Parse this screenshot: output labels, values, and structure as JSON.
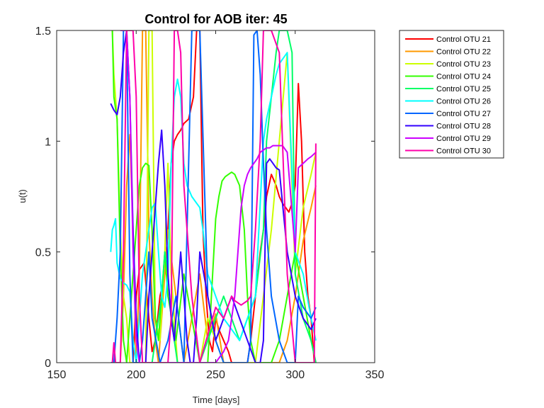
{
  "chart_data": {
    "type": "line",
    "title": "Control for AOB iter: 45",
    "xlabel": "Time [days]",
    "ylabel": "u(t)",
    "xlim": [
      150,
      350
    ],
    "ylim": [
      0,
      1.5
    ],
    "xticks": [
      150,
      200,
      250,
      300,
      350
    ],
    "yticks": [
      0,
      0.5,
      1,
      1.5
    ],
    "grid": false,
    "legend_position": "outside-top-right",
    "series": [
      {
        "name": "Control OTU 21",
        "color": "#ff0000",
        "x": [
          198,
          200,
          202,
          205,
          208,
          210,
          212,
          215,
          218,
          220,
          222,
          224,
          226,
          228,
          230,
          233,
          236,
          238,
          240,
          242,
          244,
          246,
          248,
          250,
          252,
          255,
          258,
          260,
          262,
          265,
          268,
          270,
          272,
          275,
          278,
          280,
          282,
          285,
          288,
          290,
          292,
          294,
          296,
          298,
          300,
          302,
          304,
          306,
          308,
          310,
          312
        ],
        "y": [
          0.0,
          0.3,
          0.42,
          0.45,
          0.2,
          0.05,
          0.1,
          0.3,
          0.4,
          0.6,
          0.9,
          1.0,
          1.03,
          1.05,
          1.08,
          1.1,
          1.2,
          1.5,
          1.5,
          0.6,
          0.3,
          0.1,
          0.05,
          0.2,
          0.15,
          0.1,
          0.05,
          0.0,
          0.0,
          0.0,
          0.0,
          0.0,
          0.1,
          0.3,
          0.5,
          0.6,
          0.75,
          0.85,
          0.8,
          0.75,
          0.72,
          0.7,
          0.68,
          0.72,
          0.8,
          1.26,
          1.0,
          0.5,
          0.3,
          0.2,
          0.0
        ]
      },
      {
        "name": "Control OTU 22",
        "color": "#ff9900",
        "x": [
          186,
          188,
          190,
          192,
          194,
          196,
          198,
          200,
          202,
          204,
          206,
          208,
          210,
          212,
          214,
          216,
          218,
          220,
          225,
          230,
          235,
          240,
          245,
          250,
          255,
          260,
          265,
          270,
          275,
          280,
          285,
          290,
          295,
          300,
          305,
          310,
          313
        ],
        "y": [
          0.0,
          0.0,
          0.0,
          0.3,
          0.8,
          1.03,
          0.6,
          0.0,
          0.4,
          1.5,
          1.5,
          0.6,
          0.3,
          0.1,
          0.0,
          0.2,
          0.4,
          0.6,
          0.3,
          0.0,
          0.2,
          0.4,
          0.1,
          0.22,
          0.0,
          0.0,
          0.0,
          0.0,
          0.0,
          0.0,
          0.0,
          0.0,
          0.1,
          0.3,
          0.55,
          0.7,
          0.8
        ]
      },
      {
        "name": "Control OTU 23",
        "color": "#ccff00",
        "x": [
          185,
          186,
          188,
          190,
          192,
          194,
          196,
          198,
          200,
          202,
          204,
          206,
          208,
          210,
          212,
          215,
          218,
          220,
          222,
          224,
          226,
          228,
          230,
          235,
          240,
          245,
          250,
          255,
          260,
          265,
          270,
          275,
          280,
          285,
          290,
          295,
          300,
          305,
          310,
          313
        ],
        "y": [
          1.5,
          1.3,
          1.1,
          0.6,
          0.3,
          0.2,
          0.0,
          0.0,
          0.0,
          0.0,
          0.0,
          0.0,
          1.5,
          1.5,
          0.2,
          0.1,
          0.5,
          0.9,
          0.4,
          0.2,
          0.0,
          0.0,
          0.0,
          0.0,
          0.0,
          0.2,
          0.1,
          0.0,
          0.0,
          0.0,
          0.0,
          0.0,
          0.3,
          0.6,
          1.0,
          1.4,
          0.4,
          0.7,
          0.85,
          0.95
        ]
      },
      {
        "name": "Control OTU 24",
        "color": "#33ff00",
        "x": [
          185,
          186,
          188,
          190,
          192,
          194,
          196,
          198,
          200,
          202,
          204,
          206,
          208,
          210,
          212,
          214,
          216,
          218,
          220,
          225,
          230,
          235,
          240,
          245,
          250,
          252,
          254,
          256,
          258,
          260,
          262,
          265,
          268,
          270,
          272,
          275,
          280,
          285,
          290,
          295,
          300,
          305,
          310,
          313
        ],
        "y": [
          1.5,
          1.2,
          1.1,
          0.5,
          0.1,
          0.0,
          0.2,
          0.4,
          0.6,
          0.8,
          0.88,
          0.9,
          0.89,
          0.6,
          0.2,
          0.1,
          0.3,
          0.5,
          0.3,
          0.1,
          0.4,
          0.2,
          0.0,
          0.0,
          0.65,
          0.75,
          0.82,
          0.84,
          0.85,
          0.86,
          0.85,
          0.8,
          0.6,
          0.3,
          0.1,
          0.0,
          0.0,
          0.0,
          0.1,
          0.3,
          0.5,
          0.3,
          0.1,
          0.0
        ]
      },
      {
        "name": "Control OTU 25",
        "color": "#00ff66",
        "x": [
          210,
          212,
          214,
          216,
          218,
          220,
          222,
          224,
          226,
          228,
          230,
          235,
          240,
          245,
          250,
          255,
          260,
          265,
          270,
          275,
          280,
          282,
          285,
          288,
          290,
          292,
          295,
          298,
          300,
          305,
          310,
          313
        ],
        "y": [
          0.0,
          0.1,
          0.2,
          0.3,
          0.5,
          0.4,
          0.2,
          0.1,
          0.0,
          0.0,
          0.0,
          0.0,
          0.0,
          0.1,
          0.2,
          0.3,
          0.2,
          0.1,
          0.2,
          0.3,
          0.6,
          1.0,
          1.2,
          1.4,
          1.5,
          1.5,
          1.5,
          1.4,
          0.4,
          0.2,
          0.1,
          0.0
        ]
      },
      {
        "name": "Control OTU 26",
        "color": "#00ffff",
        "x": [
          184,
          185,
          186,
          187,
          188,
          190,
          192,
          194,
          196,
          198,
          200,
          202,
          204,
          206,
          208,
          210,
          212,
          214,
          216,
          218,
          220,
          222,
          224,
          226,
          228,
          230,
          232,
          235,
          238,
          240,
          242,
          245,
          250,
          255,
          260,
          265,
          270,
          275,
          280,
          282,
          285,
          288,
          290,
          295,
          300,
          305,
          310,
          313
        ],
        "y": [
          0.5,
          0.6,
          0.62,
          0.65,
          0.45,
          0.38,
          0.36,
          0.35,
          0.32,
          0.1,
          0.0,
          0.2,
          0.4,
          0.5,
          0.6,
          0.7,
          0.72,
          0.5,
          0.3,
          0.25,
          0.4,
          0.9,
          1.2,
          1.28,
          1.2,
          0.9,
          0.8,
          0.75,
          0.72,
          0.7,
          0.6,
          0.4,
          0.3,
          0.2,
          0.15,
          0.1,
          0.2,
          0.3,
          1.0,
          1.1,
          1.2,
          1.3,
          1.35,
          1.4,
          0.5,
          0.4,
          0.2,
          0.1
        ]
      },
      {
        "name": "Control OTU 27",
        "color": "#0066ff",
        "x": [
          184,
          186,
          188,
          190,
          192,
          194,
          196,
          198,
          200,
          202,
          204,
          206,
          208,
          210,
          215,
          220,
          225,
          230,
          235,
          240,
          245,
          250,
          255,
          260,
          265,
          270,
          272,
          274,
          276,
          278,
          280,
          282,
          285,
          290,
          295,
          300,
          302,
          305,
          310,
          313
        ],
        "y": [
          0.0,
          0.0,
          0.2,
          0.5,
          1.5,
          1.5,
          0.4,
          0.0,
          0.0,
          0.0,
          0.1,
          0.3,
          0.5,
          0.2,
          0.0,
          0.1,
          0.3,
          0.0,
          1.5,
          1.5,
          0.3,
          0.1,
          0.0,
          0.0,
          0.0,
          0.0,
          0.1,
          1.48,
          1.5,
          1.3,
          0.9,
          0.6,
          0.3,
          0.1,
          0.0,
          0.0,
          0.3,
          0.25,
          0.2,
          0.25
        ]
      },
      {
        "name": "Control OTU 28",
        "color": "#3300ff",
        "x": [
          184,
          186,
          188,
          190,
          192,
          194,
          196,
          198,
          200,
          202,
          204,
          206,
          208,
          210,
          212,
          214,
          216,
          218,
          220,
          222,
          224,
          226,
          228,
          230,
          232,
          234,
          236,
          238,
          240,
          245,
          250,
          255,
          260,
          265,
          270,
          275,
          278,
          280,
          282,
          284,
          286,
          288,
          290,
          295,
          300,
          305,
          310,
          313
        ],
        "y": [
          1.17,
          1.14,
          1.12,
          1.2,
          1.4,
          1.5,
          1.2,
          0.6,
          0.2,
          0.0,
          0.0,
          0.0,
          0.3,
          0.5,
          0.7,
          0.9,
          1.05,
          0.8,
          0.4,
          0.2,
          0.1,
          0.3,
          0.5,
          0.3,
          0.1,
          0.0,
          0.0,
          0.2,
          0.5,
          0.3,
          0.1,
          0.2,
          0.3,
          0.2,
          0.1,
          0.0,
          0.0,
          0.1,
          0.9,
          0.92,
          0.9,
          0.88,
          0.87,
          0.5,
          0.3,
          0.2,
          0.15,
          0.2
        ]
      },
      {
        "name": "Control OTU 29",
        "color": "#cc00ff",
        "x": [
          190,
          192,
          194,
          196,
          198,
          200,
          202,
          205,
          210,
          215,
          220,
          225,
          230,
          235,
          240,
          245,
          250,
          255,
          258,
          260,
          262,
          264,
          266,
          268,
          270,
          272,
          274,
          276,
          278,
          280,
          282,
          284,
          286,
          288,
          290,
          292,
          295,
          300,
          302,
          305,
          308,
          310,
          313
        ],
        "y": [
          1.5,
          1.5,
          1.5,
          1.2,
          0.5,
          0.1,
          0.0,
          0.0,
          0.0,
          0.0,
          0.0,
          0.0,
          0.0,
          0.0,
          0.0,
          0.0,
          0.0,
          0.05,
          0.1,
          0.2,
          0.3,
          0.5,
          0.7,
          0.8,
          0.85,
          0.88,
          0.9,
          0.92,
          0.95,
          0.96,
          0.97,
          0.97,
          0.98,
          0.98,
          0.98,
          0.98,
          0.95,
          0.5,
          0.88,
          0.9,
          0.92,
          0.93,
          0.95
        ]
      },
      {
        "name": "Control OTU 30",
        "color": "#ff00aa",
        "x": [
          185,
          186,
          187,
          188,
          190,
          192,
          194,
          196,
          198,
          200,
          202,
          204,
          206,
          208,
          210,
          215,
          220,
          222,
          224,
          226,
          228,
          230,
          235,
          240,
          242,
          244,
          246,
          248,
          250,
          255,
          260,
          262,
          264,
          266,
          268,
          270,
          272,
          275,
          278,
          280,
          282,
          285,
          290,
          295,
          300,
          305,
          308,
          310,
          312,
          313
        ],
        "y": [
          0.0,
          0.09,
          0.0,
          0.0,
          0.0,
          0.5,
          1.5,
          1.5,
          1.5,
          1.2,
          0.3,
          0.0,
          0.0,
          0.0,
          0.0,
          0.0,
          0.0,
          0.2,
          1.5,
          1.5,
          1.4,
          0.8,
          0.3,
          0.0,
          0.05,
          0.1,
          0.15,
          0.2,
          0.25,
          0.2,
          0.3,
          0.28,
          0.27,
          0.26,
          0.27,
          0.28,
          0.3,
          0.6,
          1.0,
          1.5,
          1.5,
          1.5,
          1.4,
          0.4,
          0.0,
          0.0,
          0.0,
          0.0,
          0.0,
          0.99
        ]
      }
    ]
  }
}
